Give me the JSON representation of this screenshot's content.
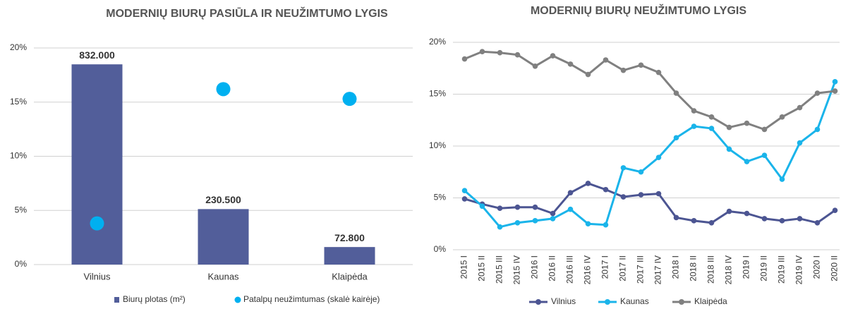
{
  "chart_data": [
    {
      "type": "bar",
      "title": "MODERNIŲ BIURŲ PASIŪLA IR NEUŽIMTUMO LYGIS",
      "categories": [
        "Vilnius",
        "Kaunas",
        "Klaipėda"
      ],
      "series": [
        {
          "name": "Biurų plotas (m²)",
          "type": "bar",
          "axis": "y2",
          "color": "#525e9a",
          "values": [
            832000,
            230500,
            72800
          ],
          "value_labels": [
            "832.000",
            "230.500",
            "72.800"
          ]
        },
        {
          "name": "Patalpų neužimtumas (skalė kairėje)",
          "type": "scatter",
          "color": "#00b0f0",
          "values": [
            3.8,
            16.2,
            15.3
          ]
        }
      ],
      "ylim": [
        0,
        20
      ],
      "yticks": [
        {
          "value": 0,
          "label": "0%"
        },
        {
          "value": 5,
          "label": "5%"
        },
        {
          "value": 10,
          "label": "10%"
        },
        {
          "value": 15,
          "label": "15%"
        },
        {
          "value": 20,
          "label": "20%"
        }
      ],
      "y2lim": [
        0,
        900000
      ],
      "grid": true,
      "legend": "bottom"
    },
    {
      "type": "line",
      "title": "MODERNIŲ BIURŲ NEUŽIMTUMO LYGIS",
      "categories": [
        "2015 I",
        "2015 II",
        "2015 III",
        "2015 IV",
        "2016 I",
        "2016 II",
        "2016 III",
        "2016 IV",
        "2017 I",
        "2017 II",
        "2017 III",
        "2017 IV",
        "2018 I",
        "2018 II",
        "2018 III",
        "2018 IV",
        "2019 I",
        "2019 II",
        "2019 III",
        "2019 IV",
        "2020 I",
        "2020 II"
      ],
      "series": [
        {
          "name": "Vilnius",
          "color": "#4c5592",
          "values": [
            4.9,
            4.4,
            4.0,
            4.1,
            4.1,
            3.5,
            5.5,
            6.4,
            5.8,
            5.1,
            5.3,
            5.4,
            3.1,
            2.8,
            2.6,
            3.7,
            3.5,
            3.0,
            2.8,
            3.0,
            2.6,
            3.8
          ]
        },
        {
          "name": "Kaunas",
          "color": "#1ab4ea",
          "values": [
            5.7,
            4.2,
            2.2,
            2.6,
            2.8,
            3.0,
            3.9,
            2.5,
            2.4,
            7.9,
            7.5,
            8.9,
            10.8,
            11.9,
            11.7,
            9.7,
            8.5,
            9.1,
            6.8,
            10.3,
            11.6,
            16.2
          ]
        },
        {
          "name": "Klaipėda",
          "color": "#808080",
          "values": [
            18.4,
            19.1,
            19.0,
            18.8,
            17.7,
            18.7,
            17.9,
            16.9,
            18.3,
            17.3,
            17.8,
            17.1,
            15.1,
            13.4,
            12.8,
            11.8,
            12.2,
            11.6,
            12.8,
            13.7,
            15.1,
            15.3
          ]
        }
      ],
      "ylim": [
        0,
        20
      ],
      "yticks": [
        {
          "value": 0,
          "label": "0%"
        },
        {
          "value": 5,
          "label": "5%"
        },
        {
          "value": 10,
          "label": "10%"
        },
        {
          "value": 15,
          "label": "15%"
        },
        {
          "value": 20,
          "label": "20%"
        }
      ],
      "grid": true,
      "legend": "bottom"
    }
  ]
}
